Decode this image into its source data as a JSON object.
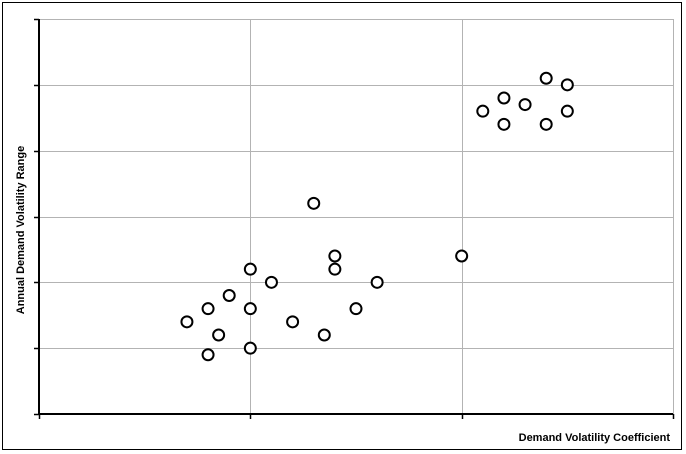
{
  "chart_data": {
    "type": "scatter",
    "title": "",
    "xlabel": "Demand Volatility Coefficient",
    "ylabel": "Annual Demand Volatility Range",
    "xlim": [
      0,
      3
    ],
    "ylim": [
      0,
      6
    ],
    "x_ticks": [
      0,
      1,
      2,
      3
    ],
    "y_ticks": [
      0,
      1,
      2,
      3,
      4,
      5,
      6
    ],
    "grid": true,
    "legend": "none",
    "marker": "open-circle",
    "colors": {
      "marker_stroke": "#000000",
      "grid": "#b3b3b3",
      "axis": "#000000"
    },
    "series": [
      {
        "points": [
          {
            "x": 0.7,
            "y": 1.4
          },
          {
            "x": 0.8,
            "y": 1.6
          },
          {
            "x": 0.85,
            "y": 1.2
          },
          {
            "x": 0.8,
            "y": 0.9
          },
          {
            "x": 0.9,
            "y": 1.8
          },
          {
            "x": 1.0,
            "y": 2.2
          },
          {
            "x": 1.0,
            "y": 1.6
          },
          {
            "x": 1.0,
            "y": 1.0
          },
          {
            "x": 1.1,
            "y": 2.0
          },
          {
            "x": 1.2,
            "y": 1.4
          },
          {
            "x": 1.3,
            "y": 3.2
          },
          {
            "x": 1.35,
            "y": 1.2
          },
          {
            "x": 1.4,
            "y": 2.4
          },
          {
            "x": 1.4,
            "y": 2.2
          },
          {
            "x": 1.5,
            "y": 1.6
          },
          {
            "x": 1.6,
            "y": 2.0
          },
          {
            "x": 2.0,
            "y": 2.4
          },
          {
            "x": 2.1,
            "y": 4.6
          },
          {
            "x": 2.2,
            "y": 4.8
          },
          {
            "x": 2.2,
            "y": 4.4
          },
          {
            "x": 2.3,
            "y": 4.7
          },
          {
            "x": 2.4,
            "y": 5.1
          },
          {
            "x": 2.4,
            "y": 4.4
          },
          {
            "x": 2.5,
            "y": 5.0
          },
          {
            "x": 2.5,
            "y": 4.6
          }
        ]
      }
    ]
  }
}
